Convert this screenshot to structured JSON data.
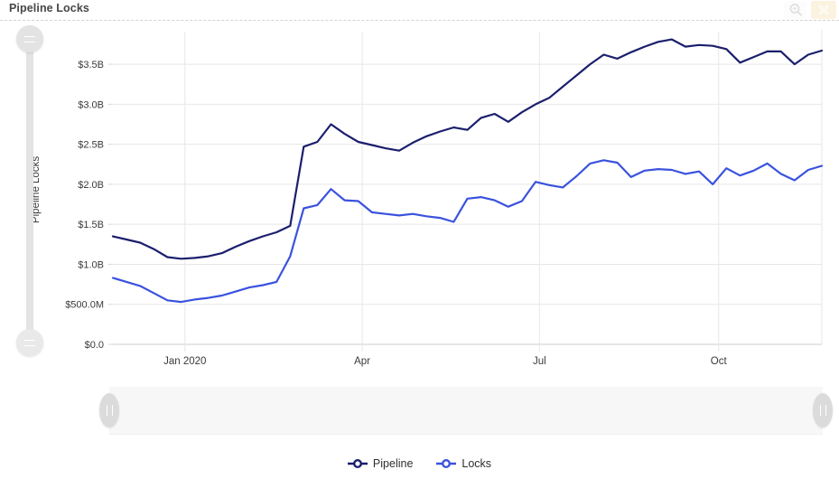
{
  "header": {
    "title": "Pipeline Locks",
    "actions": [
      {
        "name": "zoom-icon",
        "glyph": "magnifier-plus"
      },
      {
        "name": "close-icon",
        "glyph": "x"
      }
    ]
  },
  "colors": {
    "pipeline": "#1b1f6d",
    "locks": "#3a52de",
    "grid": "#e7e7e7",
    "axis_line": "#cccccc",
    "axis_text": "#3a3a3a",
    "slider_track": "#e4e4e4",
    "slider_handle": "#dfdfdf",
    "range_area": "#f7f7f7",
    "close_button_bg": "#fbf2df"
  },
  "controls": {
    "vertical_slider_handle_icon": "grip-horizontal-lines",
    "range_handle_icon": "grip-vertical-lines"
  },
  "chart_data": {
    "type": "line",
    "title": "Pipeline Locks",
    "xlabel": "",
    "ylabel": "Pipeline Locks",
    "units": "USD",
    "ylim": [
      0,
      3.93
    ],
    "grid": true,
    "legend_position": "bottom",
    "x": [
      "2019-11-25",
      "2019-12-02",
      "2019-12-09",
      "2019-12-16",
      "2019-12-23",
      "2019-12-30",
      "2020-01-06",
      "2020-01-13",
      "2020-01-20",
      "2020-01-27",
      "2020-02-03",
      "2020-02-10",
      "2020-02-17",
      "2020-02-24",
      "2020-03-02",
      "2020-03-09",
      "2020-03-16",
      "2020-03-23",
      "2020-03-30",
      "2020-04-06",
      "2020-04-13",
      "2020-04-20",
      "2020-04-27",
      "2020-05-04",
      "2020-05-11",
      "2020-05-18",
      "2020-05-25",
      "2020-06-01",
      "2020-06-08",
      "2020-06-15",
      "2020-06-22",
      "2020-06-29",
      "2020-07-06",
      "2020-07-13",
      "2020-07-20",
      "2020-07-27",
      "2020-08-03",
      "2020-08-10",
      "2020-08-17",
      "2020-08-24",
      "2020-08-31",
      "2020-09-07",
      "2020-09-14",
      "2020-09-21",
      "2020-09-28",
      "2020-10-05",
      "2020-10-12",
      "2020-10-19",
      "2020-10-26",
      "2020-11-02",
      "2020-11-09",
      "2020-11-16",
      "2020-11-23"
    ],
    "series": [
      {
        "name": "Pipeline",
        "color": "#1b1f6d",
        "unit": "B",
        "values": [
          1.35,
          1.31,
          1.27,
          1.19,
          1.09,
          1.07,
          1.08,
          1.1,
          1.14,
          1.22,
          1.29,
          1.35,
          1.4,
          1.48,
          2.47,
          2.53,
          2.75,
          2.63,
          2.53,
          2.49,
          2.45,
          2.42,
          2.52,
          2.6,
          2.66,
          2.71,
          2.68,
          2.83,
          2.88,
          2.78,
          2.9,
          3.0,
          3.08,
          3.22,
          3.36,
          3.5,
          3.62,
          3.57,
          3.65,
          3.72,
          3.78,
          3.81,
          3.72,
          3.74,
          3.73,
          3.69,
          3.52,
          3.59,
          3.66,
          3.66,
          3.5,
          3.62,
          3.67
        ]
      },
      {
        "name": "Locks",
        "color": "#3a52de",
        "unit": "B",
        "values": [
          0.83,
          0.78,
          0.73,
          0.64,
          0.55,
          0.53,
          0.56,
          0.58,
          0.61,
          0.66,
          0.71,
          0.74,
          0.78,
          1.1,
          1.7,
          1.74,
          1.94,
          1.8,
          1.79,
          1.65,
          1.63,
          1.61,
          1.63,
          1.6,
          1.58,
          1.53,
          1.82,
          1.84,
          1.8,
          1.72,
          1.79,
          2.03,
          1.99,
          1.96,
          2.1,
          2.26,
          2.3,
          2.27,
          2.09,
          2.17,
          2.19,
          2.18,
          2.13,
          2.16,
          2.0,
          2.2,
          2.11,
          2.17,
          2.26,
          2.13,
          2.05,
          2.18,
          2.23
        ]
      }
    ],
    "y_ticks": [
      {
        "label": "$0.0",
        "value": 0
      },
      {
        "label": "$500.0M",
        "value": 0.5
      },
      {
        "label": "$1.0B",
        "value": 1.0
      },
      {
        "label": "$1.5B",
        "value": 1.5
      },
      {
        "label": "$2.0B",
        "value": 2.0
      },
      {
        "label": "$2.5B",
        "value": 2.5
      },
      {
        "label": "$3.0B",
        "value": 3.0
      },
      {
        "label": "$3.5B",
        "value": 3.5
      }
    ],
    "x_ticks": [
      {
        "label": "Jan 2020",
        "date": "2020-01-01"
      },
      {
        "label": "Apr",
        "date": "2020-04-01"
      },
      {
        "label": "Jul",
        "date": "2020-07-01"
      },
      {
        "label": "Oct",
        "date": "2020-10-01"
      }
    ]
  }
}
